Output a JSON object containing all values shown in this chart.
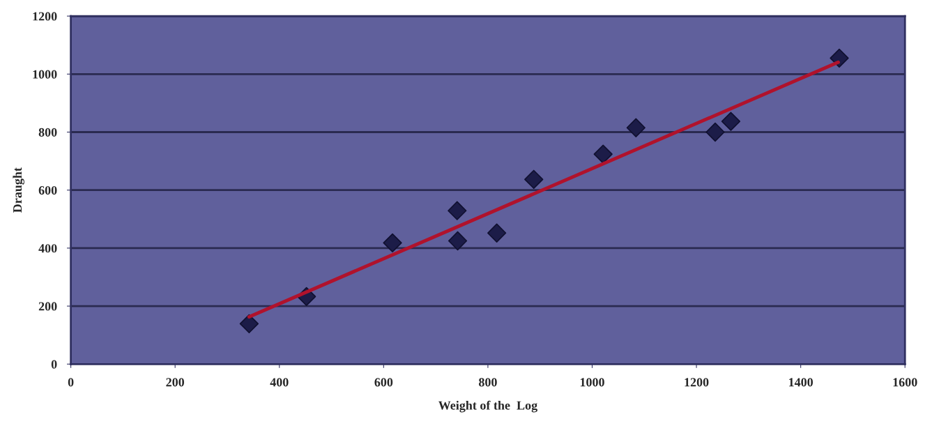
{
  "chart_data": {
    "type": "scatter",
    "xlabel": "Weight of the  Log",
    "ylabel": "Draught",
    "xlim": [
      0,
      1600
    ],
    "xticks": [
      0,
      200,
      400,
      600,
      800,
      1000,
      1200,
      1400,
      1600
    ],
    "ylim": [
      0,
      1200
    ],
    "yticks": [
      0,
      200,
      400,
      600,
      800,
      1000,
      1200
    ],
    "grid": "y",
    "legend": false,
    "marker": "diamond",
    "series": [
      {
        "type": "scatter",
        "color": "#1c1c48",
        "x": [
          342,
          452,
          617,
          741,
          742,
          817,
          888,
          1021,
          1084,
          1236,
          1266,
          1474
        ],
        "values": [
          139,
          233,
          418,
          529,
          425,
          452,
          637,
          724,
          815,
          800,
          837,
          1055
        ]
      },
      {
        "type": "line",
        "color": "#b0122c",
        "line_style": "solid",
        "marker": "none",
        "x": [
          342,
          1472
        ],
        "values": [
          163,
          1041
        ]
      }
    ]
  }
}
